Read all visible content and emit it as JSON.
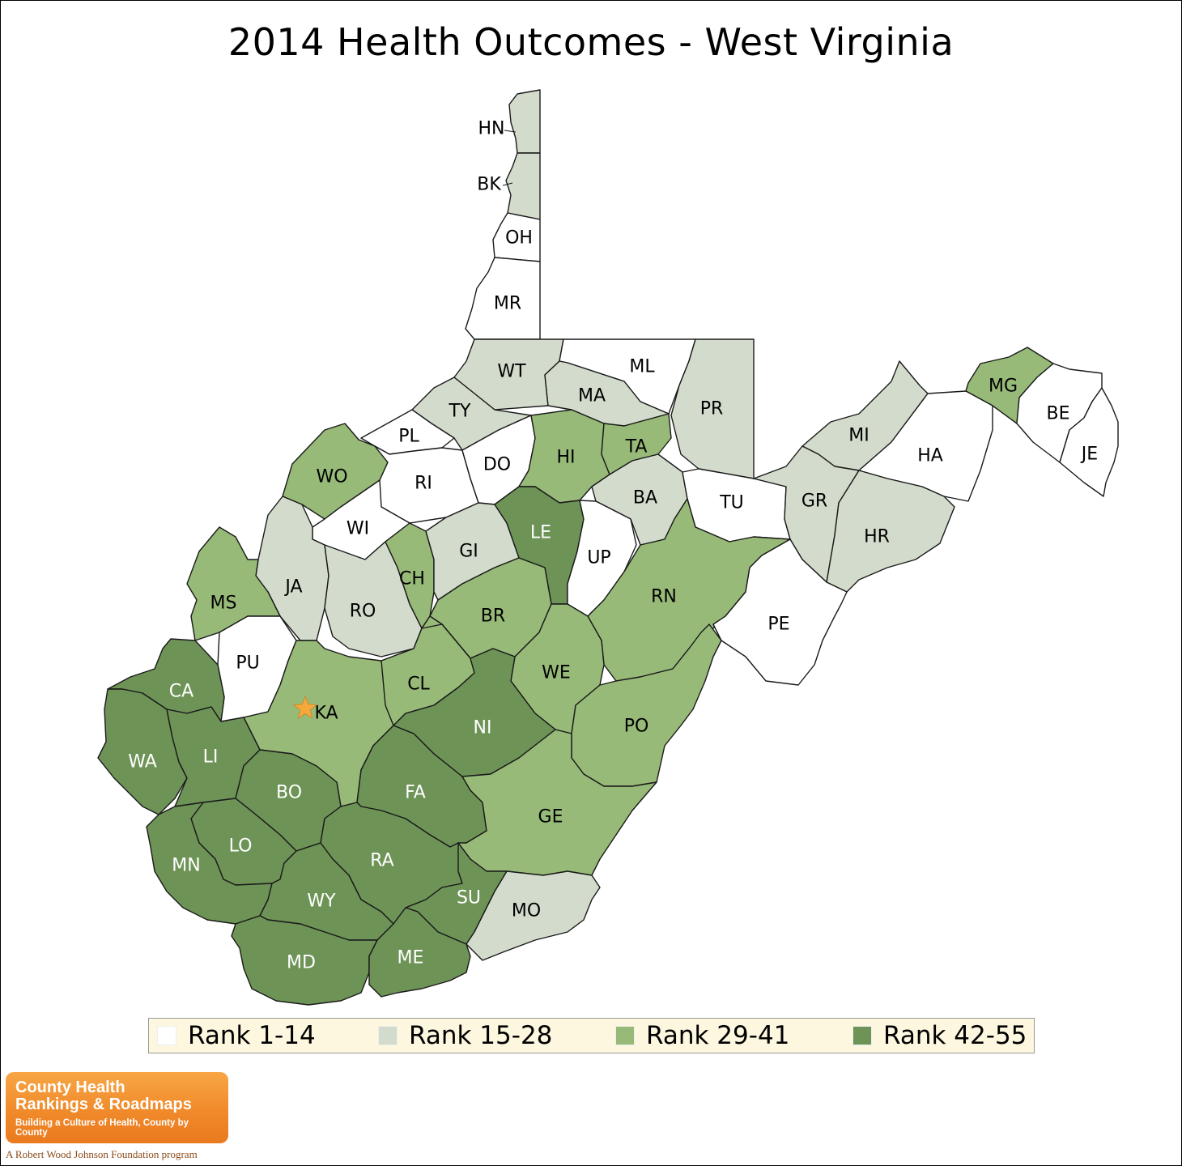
{
  "title": "2014 Health Outcomes - West Virginia",
  "colors": {
    "rank_1_14": "#ffffff",
    "rank_15_28": "#d3dccc",
    "rank_29_41": "#97ba78",
    "rank_42_55": "#6e9356",
    "star": "#f4a93a"
  },
  "legend": [
    {
      "label": "Rank 1-14",
      "color": "#ffffff"
    },
    {
      "label": "Rank 15-28",
      "color": "#d3dccc"
    },
    {
      "label": "Rank 29-41",
      "color": "#97ba78"
    },
    {
      "label": "Rank 42-55",
      "color": "#6e9356"
    }
  ],
  "counties": [
    {
      "code": "HN",
      "rank_group": "Rank 15-28"
    },
    {
      "code": "BK",
      "rank_group": "Rank 15-28"
    },
    {
      "code": "OH",
      "rank_group": "Rank 1-14"
    },
    {
      "code": "MR",
      "rank_group": "Rank 1-14"
    },
    {
      "code": "WT",
      "rank_group": "Rank 15-28"
    },
    {
      "code": "ML",
      "rank_group": "Rank 1-14"
    },
    {
      "code": "MA",
      "rank_group": "Rank 15-28"
    },
    {
      "code": "PR",
      "rank_group": "Rank 15-28"
    },
    {
      "code": "TY",
      "rank_group": "Rank 15-28"
    },
    {
      "code": "PL",
      "rank_group": "Rank 1-14"
    },
    {
      "code": "WO",
      "rank_group": "Rank 29-41"
    },
    {
      "code": "RI",
      "rank_group": "Rank 1-14"
    },
    {
      "code": "DO",
      "rank_group": "Rank 1-14"
    },
    {
      "code": "HI",
      "rank_group": "Rank 29-41"
    },
    {
      "code": "TA",
      "rank_group": "Rank 29-41"
    },
    {
      "code": "BA",
      "rank_group": "Rank 15-28"
    },
    {
      "code": "TU",
      "rank_group": "Rank 1-14"
    },
    {
      "code": "MI",
      "rank_group": "Rank 15-28"
    },
    {
      "code": "MG",
      "rank_group": "Rank 29-41"
    },
    {
      "code": "BE",
      "rank_group": "Rank 1-14"
    },
    {
      "code": "JE",
      "rank_group": "Rank 1-14"
    },
    {
      "code": "HA",
      "rank_group": "Rank 1-14"
    },
    {
      "code": "GR",
      "rank_group": "Rank 15-28"
    },
    {
      "code": "HR",
      "rank_group": "Rank 15-28"
    },
    {
      "code": "WI",
      "rank_group": "Rank 1-14"
    },
    {
      "code": "JA",
      "rank_group": "Rank 15-28"
    },
    {
      "code": "MS",
      "rank_group": "Rank 29-41"
    },
    {
      "code": "RO",
      "rank_group": "Rank 15-28"
    },
    {
      "code": "CH",
      "rank_group": "Rank 29-41"
    },
    {
      "code": "GI",
      "rank_group": "Rank 15-28"
    },
    {
      "code": "LE",
      "rank_group": "Rank 42-55"
    },
    {
      "code": "UP",
      "rank_group": "Rank 1-14"
    },
    {
      "code": "RN",
      "rank_group": "Rank 29-41"
    },
    {
      "code": "PE",
      "rank_group": "Rank 1-14"
    },
    {
      "code": "BR",
      "rank_group": "Rank 29-41"
    },
    {
      "code": "PU",
      "rank_group": "Rank 1-14"
    },
    {
      "code": "CA",
      "rank_group": "Rank 42-55"
    },
    {
      "code": "KA",
      "rank_group": "Rank 29-41"
    },
    {
      "code": "CL",
      "rank_group": "Rank 29-41"
    },
    {
      "code": "WE",
      "rank_group": "Rank 29-41"
    },
    {
      "code": "NI",
      "rank_group": "Rank 42-55"
    },
    {
      "code": "PO",
      "rank_group": "Rank 29-41"
    },
    {
      "code": "WA",
      "rank_group": "Rank 42-55"
    },
    {
      "code": "LI",
      "rank_group": "Rank 42-55"
    },
    {
      "code": "BO",
      "rank_group": "Rank 42-55"
    },
    {
      "code": "FA",
      "rank_group": "Rank 42-55"
    },
    {
      "code": "GE",
      "rank_group": "Rank 29-41"
    },
    {
      "code": "LO",
      "rank_group": "Rank 42-55"
    },
    {
      "code": "MN",
      "rank_group": "Rank 42-55"
    },
    {
      "code": "RA",
      "rank_group": "Rank 42-55"
    },
    {
      "code": "WY",
      "rank_group": "Rank 42-55"
    },
    {
      "code": "SU",
      "rank_group": "Rank 42-55"
    },
    {
      "code": "MO",
      "rank_group": "Rank 15-28"
    },
    {
      "code": "MD",
      "rank_group": "Rank 42-55"
    },
    {
      "code": "ME",
      "rank_group": "Rank 42-55"
    }
  ],
  "capital_marker": {
    "icon": "star-icon",
    "county": "KA"
  },
  "logo": {
    "line1": "County Health",
    "line2": "Rankings & Roadmaps",
    "tagline": "Building a Culture of Health, County by County"
  },
  "footer_note": "A Robert Wood Johnson Foundation program"
}
